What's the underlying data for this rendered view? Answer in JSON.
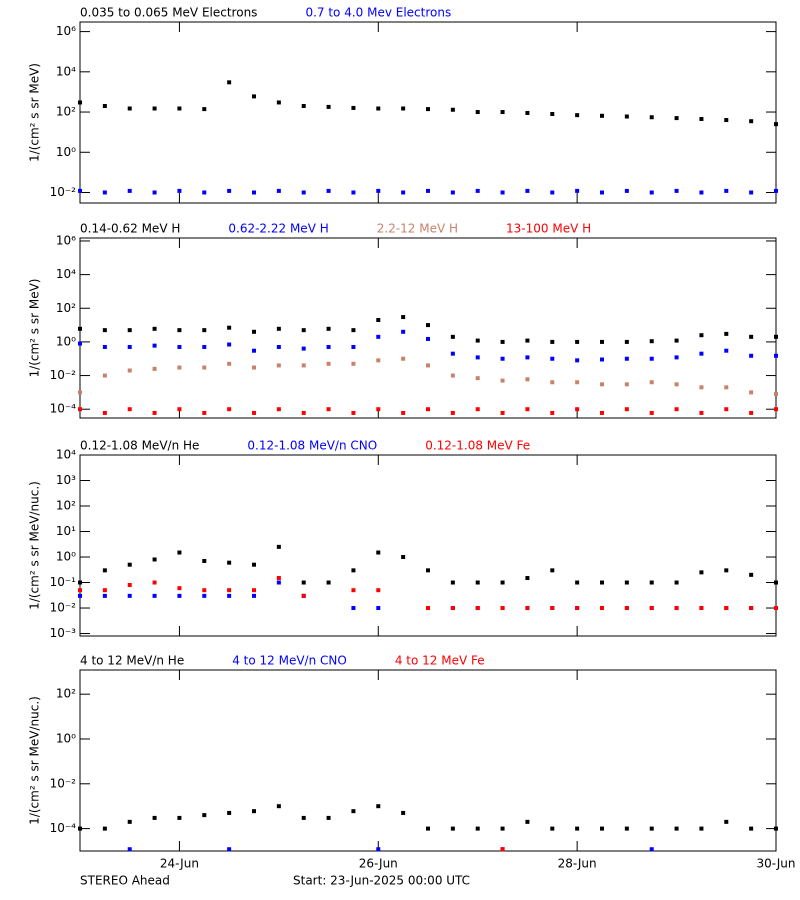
{
  "chart_data": [
    {
      "type": "scatter",
      "y_label": "1/(cm² s sr MeV)",
      "log_y": true,
      "ylim": [
        0.003,
        3000000
      ],
      "yticks": [
        {
          "value": 0.01,
          "label": "10⁻²"
        },
        {
          "value": 1,
          "label": "10⁰"
        },
        {
          "value": 100,
          "label": "10²"
        },
        {
          "value": 10000,
          "label": "10⁴"
        },
        {
          "value": 1000000,
          "label": "10⁶"
        }
      ],
      "series": [
        {
          "name": "0.035 to 0.065 MeV Electrons",
          "color": "#000000",
          "values": [
            300,
            200,
            150,
            150,
            150,
            140,
            3000,
            600,
            300,
            200,
            180,
            160,
            150,
            150,
            140,
            130,
            100,
            100,
            90,
            80,
            70,
            65,
            60,
            55,
            50,
            45,
            40,
            35,
            25
          ]
        },
        {
          "name": "0.7 to 4.0 Mev Electrons",
          "color": "#0000ff",
          "values": [
            0.012,
            0.01,
            0.012,
            0.01,
            0.012,
            0.01,
            0.012,
            0.01,
            0.012,
            0.01,
            0.012,
            0.01,
            0.012,
            0.01,
            0.012,
            0.01,
            0.012,
            0.01,
            0.012,
            0.01,
            0.012,
            0.01,
            0.012,
            0.01,
            0.012,
            0.01,
            0.012,
            0.01,
            0.012
          ]
        }
      ]
    },
    {
      "type": "scatter",
      "y_label": "1/(cm² s sr MeV)",
      "log_y": true,
      "ylim": [
        3e-05,
        1500000
      ],
      "yticks": [
        {
          "value": 0.0001,
          "label": "10⁻⁴"
        },
        {
          "value": 0.01,
          "label": "10⁻²"
        },
        {
          "value": 1,
          "label": "10⁰"
        },
        {
          "value": 100,
          "label": "10²"
        },
        {
          "value": 10000,
          "label": "10⁴"
        },
        {
          "value": 1000000,
          "label": "10⁶"
        }
      ],
      "series": [
        {
          "name": "0.14-0.62 MeV H",
          "color": "#000000",
          "values": [
            6,
            5,
            5,
            6,
            5,
            5,
            7,
            4,
            6,
            5,
            6,
            5,
            20,
            30,
            10,
            2,
            1.2,
            1,
            1.2,
            1,
            1,
            1,
            1,
            1.1,
            1.2,
            2.5,
            3,
            2,
            2
          ]
        },
        {
          "name": "0.62-2.22 MeV H",
          "color": "#0000ff",
          "values": [
            0.8,
            0.5,
            0.5,
            0.6,
            0.5,
            0.5,
            0.7,
            0.3,
            0.5,
            0.4,
            0.5,
            0.5,
            2,
            4,
            1.5,
            0.2,
            0.12,
            0.1,
            0.12,
            0.1,
            0.08,
            0.09,
            0.1,
            0.1,
            0.12,
            0.2,
            0.3,
            0.15,
            0.15
          ]
        },
        {
          "name": "2.2-12 MeV H",
          "color": "#c8826a",
          "values": [
            0.001,
            0.01,
            0.02,
            0.025,
            0.03,
            0.03,
            0.05,
            0.03,
            0.04,
            0.04,
            0.05,
            0.05,
            0.08,
            0.1,
            0.04,
            0.01,
            0.007,
            0.005,
            0.006,
            0.004,
            0.004,
            0.003,
            0.003,
            0.004,
            0.003,
            0.002,
            0.002,
            0.001,
            0.0008
          ]
        },
        {
          "name": "13-100 MeV H",
          "color": "#ff0000",
          "values": [
            0.0001,
            6e-05,
            0.0001,
            6e-05,
            0.0001,
            6e-05,
            0.0001,
            6e-05,
            0.0001,
            6e-05,
            0.0001,
            6e-05,
            0.0001,
            6e-05,
            0.0001,
            6e-05,
            0.0001,
            6e-05,
            0.0001,
            6e-05,
            0.0001,
            6e-05,
            0.0001,
            6e-05,
            0.0001,
            6e-05,
            0.0001,
            6e-05,
            0.0001
          ]
        }
      ]
    },
    {
      "type": "scatter",
      "y_label": "1/(cm² s sr MeV/nuc.)",
      "log_y": true,
      "ylim": [
        0.0008,
        10000
      ],
      "yticks": [
        {
          "value": 0.001,
          "label": "10⁻³"
        },
        {
          "value": 0.01,
          "label": "10⁻²"
        },
        {
          "value": 0.1,
          "label": "10⁻¹"
        },
        {
          "value": 1,
          "label": "10⁰"
        },
        {
          "value": 10,
          "label": "10¹"
        },
        {
          "value": 100,
          "label": "10²"
        },
        {
          "value": 1000,
          "label": "10³"
        },
        {
          "value": 10000,
          "label": "10⁴"
        }
      ],
      "series": [
        {
          "name": "0.12-1.08 MeV/n He",
          "color": "#000000",
          "values": [
            0.1,
            0.3,
            0.5,
            0.8,
            1.5,
            0.7,
            0.6,
            0.5,
            2.5,
            0.1,
            0.1,
            0.3,
            1.5,
            1,
            0.3,
            0.1,
            0.1,
            0.1,
            0.15,
            0.3,
            0.1,
            0.1,
            0.1,
            0.1,
            0.1,
            0.25,
            0.3,
            0.2,
            0.1
          ]
        },
        {
          "name": "0.12-1.08 MeV/n CNO",
          "color": "#0000ff",
          "values": [
            0.03,
            0.03,
            0.03,
            0.03,
            0.03,
            0.03,
            0.03,
            0.03,
            0.1,
            0.03,
            null,
            0.01,
            0.01,
            null,
            0.01,
            0.01,
            0.01,
            0.01,
            0.01,
            0.01,
            0.01,
            0.01,
            0.01,
            0.01,
            0.01,
            0.01,
            0.01,
            0.01,
            0.01
          ]
        },
        {
          "name": "0.12-1.08 MeV Fe",
          "color": "#ff0000",
          "values": [
            0.05,
            0.05,
            0.08,
            0.1,
            0.06,
            0.05,
            0.05,
            0.05,
            0.15,
            0.03,
            null,
            0.05,
            0.05,
            null,
            0.01,
            0.01,
            0.01,
            0.01,
            0.01,
            0.01,
            0.01,
            0.01,
            0.01,
            0.01,
            0.01,
            0.01,
            0.01,
            0.01,
            0.01
          ]
        }
      ]
    },
    {
      "type": "scatter",
      "y_label": "1/(cm² s sr MeV/nuc.)",
      "log_y": true,
      "ylim": [
        1e-05,
        1200
      ],
      "yticks": [
        {
          "value": 0.0001,
          "label": "10⁻⁴"
        },
        {
          "value": 0.01,
          "label": "10⁻²"
        },
        {
          "value": 1,
          "label": "10⁰"
        },
        {
          "value": 100,
          "label": "10²"
        }
      ],
      "xlim": [
        "2025-06-23T00:00",
        "2025-06-30T00:00"
      ],
      "xticks": [
        {
          "value": "2025-06-24T00:00",
          "label": "24-Jun"
        },
        {
          "value": "2025-06-26T00:00",
          "label": "26-Jun"
        },
        {
          "value": "2025-06-28T00:00",
          "label": "28-Jun"
        },
        {
          "value": "2025-06-30T00:00",
          "label": "30-Jun"
        }
      ],
      "series": [
        {
          "name": "4 to 12 MeV/n He",
          "color": "#000000",
          "values": [
            0.0001,
            0.0001,
            0.0002,
            0.0003,
            0.0003,
            0.0004,
            0.0005,
            0.0006,
            0.001,
            0.0003,
            0.0003,
            0.0006,
            0.001,
            0.0005,
            0.0001,
            0.0001,
            0.0001,
            0.0001,
            0.0002,
            0.0001,
            0.0001,
            0.0001,
            0.0001,
            0.0001,
            0.0001,
            0.0001,
            0.0002,
            0.0001,
            0.0001
          ]
        },
        {
          "name": "4 to 12 MeV/n CNO",
          "color": "#0000ff",
          "values": [
            null,
            null,
            1.2e-05,
            null,
            null,
            null,
            1.2e-05,
            null,
            null,
            null,
            null,
            null,
            1.2e-05,
            null,
            null,
            null,
            null,
            1.2e-05,
            null,
            null,
            null,
            null,
            null,
            1.2e-05,
            null,
            null,
            null,
            null,
            null
          ]
        },
        {
          "name": "4 to 12 MeV Fe",
          "color": "#ff0000",
          "values": [
            null,
            null,
            null,
            null,
            null,
            null,
            null,
            null,
            null,
            null,
            null,
            null,
            null,
            null,
            null,
            null,
            null,
            1.2e-05,
            null,
            null,
            null,
            null,
            null,
            null,
            null,
            null,
            null,
            null,
            null
          ]
        }
      ]
    }
  ],
  "x": [
    "2025-06-23T00:00",
    "2025-06-23T06:00",
    "2025-06-23T12:00",
    "2025-06-23T18:00",
    "2025-06-24T00:00",
    "2025-06-24T06:00",
    "2025-06-24T12:00",
    "2025-06-24T18:00",
    "2025-06-25T00:00",
    "2025-06-25T06:00",
    "2025-06-25T12:00",
    "2025-06-25T18:00",
    "2025-06-26T00:00",
    "2025-06-26T06:00",
    "2025-06-26T12:00",
    "2025-06-26T18:00",
    "2025-06-27T00:00",
    "2025-06-27T06:00",
    "2025-06-27T12:00",
    "2025-06-27T18:00",
    "2025-06-28T00:00",
    "2025-06-28T06:00",
    "2025-06-28T12:00",
    "2025-06-28T18:00",
    "2025-06-29T00:00",
    "2025-06-29T06:00",
    "2025-06-29T12:00",
    "2025-06-29T18:00",
    "2025-06-30T00:00"
  ],
  "footer": {
    "spacecraft": "STEREO Ahead",
    "start": "Start: 23-Jun-2025 00:00 UTC"
  }
}
